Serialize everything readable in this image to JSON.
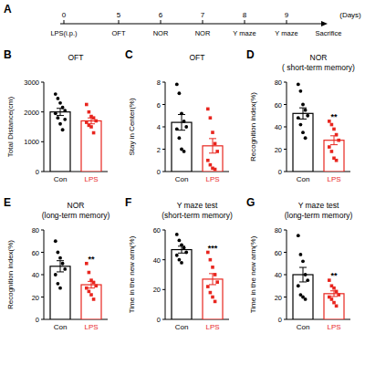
{
  "timeline": {
    "panel": "A",
    "days": [
      0,
      5,
      6,
      7,
      8,
      9
    ],
    "events": [
      "LPS(i.p.)",
      "OFT",
      "NOR",
      "NOR",
      "Y maze",
      "Y maze"
    ],
    "unit": "(Days)",
    "end_event": "Sacrifice"
  },
  "chart_data": [
    {
      "type": "bar",
      "panel": "B",
      "title": "OFT",
      "y_label": "Total Distance(cm)",
      "categories": [
        "Con",
        "LPS"
      ],
      "colors": [
        "#000000",
        "#e8261f"
      ],
      "values": [
        2000,
        1700
      ],
      "errors": [
        120,
        100
      ],
      "points": [
        [
          2600,
          2450,
          2300,
          2150,
          2050,
          1950,
          1800,
          1600,
          1400,
          1750
        ],
        [
          2250,
          2000,
          1850,
          1800,
          1700,
          1650,
          1550,
          1500,
          1300
        ]
      ],
      "ylim": [
        0,
        3000
      ],
      "yticks": [
        0,
        1000,
        2000,
        3000
      ]
    },
    {
      "type": "bar",
      "panel": "C",
      "title": "OFT",
      "y_label": "Stay in Center(%)",
      "categories": [
        "Con",
        "LPS"
      ],
      "colors": [
        "#000000",
        "#e8261f"
      ],
      "values": [
        4.4,
        2.3
      ],
      "errors": [
        0.7,
        0.65
      ],
      "points": [
        [
          7.8,
          7.0,
          5.2,
          4.5,
          4.0,
          3.8,
          3.0,
          2.0,
          1.8
        ],
        [
          5.6,
          4.8,
          3.5,
          2.5,
          1.8,
          1.0,
          0.6,
          0.3,
          0.2
        ]
      ],
      "ylim": [
        0,
        8
      ],
      "yticks": [
        0,
        2,
        4,
        6,
        8
      ]
    },
    {
      "type": "bar",
      "panel": "D",
      "title": "NOR",
      "subtitle": "( short-term memory)",
      "y_label": "Recognition index(%)",
      "categories": [
        "Con",
        "LPS"
      ],
      "colors": [
        "#000000",
        "#e8261f"
      ],
      "values": [
        52,
        28
      ],
      "errors": [
        5,
        4
      ],
      "points": [
        [
          78,
          72,
          60,
          55,
          50,
          48,
          42,
          35,
          30
        ],
        [
          45,
          42,
          38,
          33,
          28,
          22,
          18,
          12,
          10
        ]
      ],
      "ylim": [
        0,
        80
      ],
      "yticks": [
        0,
        20,
        40,
        60,
        80
      ],
      "annotation": "**"
    },
    {
      "type": "bar",
      "panel": "E",
      "title": "NOR",
      "subtitle": "(long-term memory)",
      "y_label": "Recognition index(%)",
      "categories": [
        "Con",
        "LPS"
      ],
      "colors": [
        "#000000",
        "#e8261f"
      ],
      "values": [
        47.5,
        31
      ],
      "errors": [
        5,
        3
      ],
      "points": [
        [
          70,
          60,
          55,
          50,
          45,
          40,
          32,
          28
        ],
        [
          50,
          42,
          35,
          33,
          30,
          28,
          25,
          22,
          18
        ]
      ],
      "ylim": [
        0,
        80
      ],
      "yticks": [
        0,
        20,
        40,
        60,
        80
      ],
      "annotation": "**"
    },
    {
      "type": "bar",
      "panel": "F",
      "title": "Y maze test",
      "subtitle": "(short-term memory)",
      "y_label": "Time in the new arm(%)",
      "categories": [
        "Con",
        "LPS"
      ],
      "colors": [
        "#000000",
        "#e8261f"
      ],
      "values": [
        46.8,
        27
      ],
      "errors": [
        2.3,
        3.7
      ],
      "points": [
        [
          57,
          53,
          50,
          48,
          45,
          43,
          40,
          38
        ],
        [
          45,
          40,
          35,
          30,
          25,
          22,
          18,
          15,
          12
        ]
      ],
      "ylim": [
        0,
        60
      ],
      "yticks": [
        0,
        20,
        40,
        60
      ],
      "annotation": "***"
    },
    {
      "type": "bar",
      "panel": "G",
      "title": "Y maze test",
      "subtitle": "(long-term memory)",
      "y_label": "Time in the new arm(%)",
      "categories": [
        "Con",
        "LPS"
      ],
      "colors": [
        "#000000",
        "#e8261f"
      ],
      "values": [
        40,
        23
      ],
      "errors": [
        6.5,
        2.5
      ],
      "points": [
        [
          75,
          58,
          52,
          40,
          35,
          30,
          22,
          20,
          18
        ],
        [
          35,
          30,
          28,
          25,
          22,
          20,
          18,
          15,
          12
        ]
      ],
      "ylim": [
        0,
        80
      ],
      "yticks": [
        0,
        20,
        40,
        60,
        80
      ],
      "annotation": "**"
    }
  ]
}
